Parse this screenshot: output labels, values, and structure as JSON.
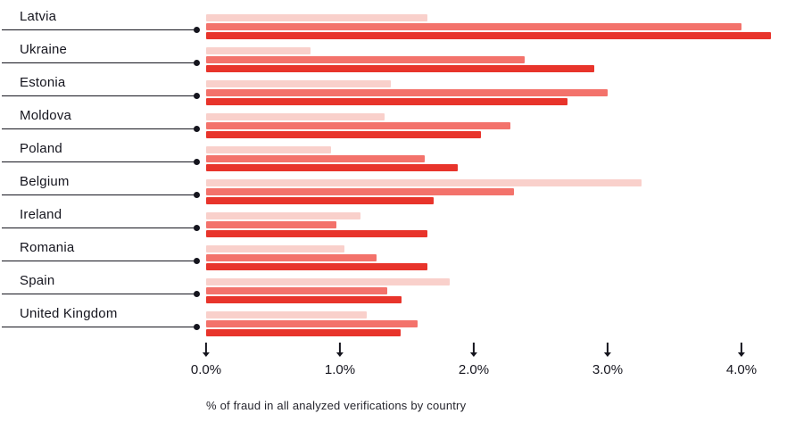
{
  "chart_data": {
    "type": "bar",
    "orientation": "horizontal",
    "caption": "% of fraud in all analyzed verifications by country",
    "categories": [
      "Latvia",
      "Ukraine",
      "Estonia",
      "Moldova",
      "Poland",
      "Belgium",
      "Ireland",
      "Romania",
      "Spain",
      "United Kingdom"
    ],
    "series": [
      {
        "name": "series-light",
        "color": "#f9d0cb",
        "values": [
          1.65,
          0.78,
          1.38,
          1.33,
          0.93,
          3.25,
          1.15,
          1.03,
          1.82,
          1.2
        ]
      },
      {
        "name": "series-medium",
        "color": "#f3726b",
        "values": [
          4.0,
          2.38,
          3.0,
          2.27,
          1.63,
          2.3,
          0.97,
          1.27,
          1.35,
          1.58
        ]
      },
      {
        "name": "series-dark",
        "color": "#e8342b",
        "values": [
          4.22,
          2.9,
          2.7,
          2.05,
          1.88,
          1.7,
          1.65,
          1.65,
          1.46,
          1.45
        ]
      }
    ],
    "x_ticks": [
      {
        "label": "0.0%",
        "value": 0
      },
      {
        "label": "1.0%",
        "value": 1
      },
      {
        "label": "2.0%",
        "value": 2
      },
      {
        "label": "3.0%",
        "value": 3
      },
      {
        "label": "4.0%",
        "value": 4
      }
    ],
    "xlim": [
      0,
      4.33
    ],
    "grid": "off",
    "legend": "none",
    "axis_color": "#15151e"
  }
}
